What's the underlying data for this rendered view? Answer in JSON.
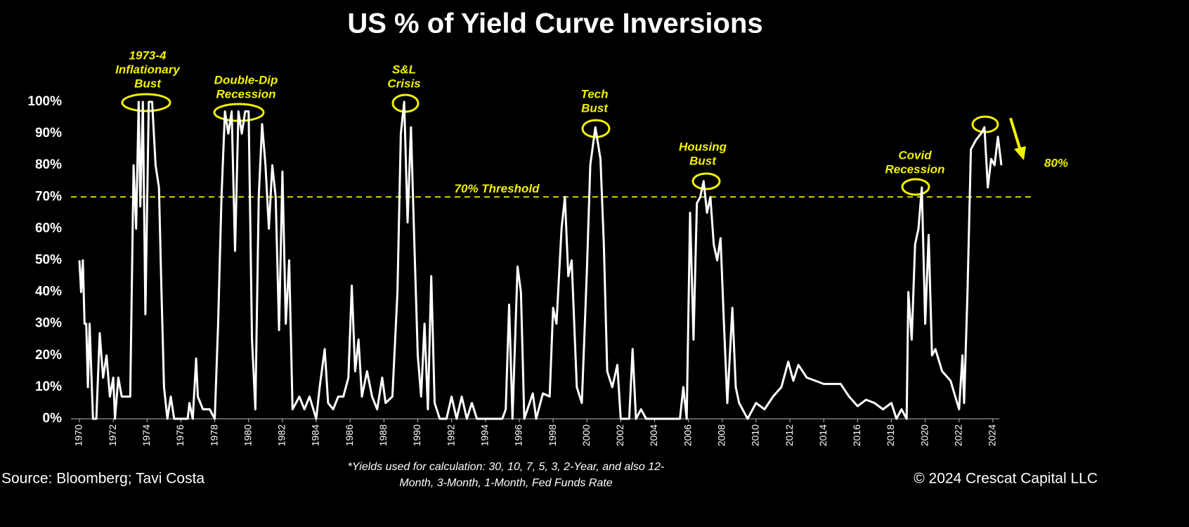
{
  "chart_data": {
    "type": "line",
    "title": "US % of Yield Curve Inversions",
    "source": "Source: Bloomberg; Tavi Costa",
    "footnote": [
      "*Yields used for calculation: 30, 10, 7, 5, 3, 2-Year, and also 12-",
      "Month, 3-Month, 1-Month, Fed Funds Rate"
    ],
    "copyright": "© 2024 Crescat Capital LLC",
    "annotations": [
      {
        "text": [
          "1973-4",
          "Inflationary",
          "Bust"
        ]
      },
      {
        "text": [
          "Double-Dip",
          "Recession"
        ]
      },
      {
        "text": [
          "S&L",
          "Crisis"
        ]
      },
      {
        "text": [
          "Tech",
          "Bust"
        ]
      },
      {
        "text": [
          "Housing",
          "Bust"
        ]
      },
      {
        "text": [
          "Covid",
          "Recession"
        ]
      },
      {
        "text": [
          "80%"
        ]
      }
    ],
    "threshold": {
      "value": 70,
      "label": "70% Threshold"
    },
    "xlim": [
      1969.5,
      2025
    ],
    "xticks": [
      1970,
      1972,
      1974,
      1976,
      1978,
      1980,
      1982,
      1984,
      1986,
      1988,
      1990,
      1992,
      1994,
      1996,
      1998,
      2000,
      2002,
      2004,
      2006,
      2008,
      2010,
      2012,
      2014,
      2016,
      2018,
      2020,
      2022,
      2024
    ],
    "ylim": [
      0,
      100
    ],
    "yticks": [
      {
        "value": 0,
        "label": "0%"
      },
      {
        "value": 10,
        "label": "10%"
      },
      {
        "value": 20,
        "label": "20%"
      },
      {
        "value": 30,
        "label": "30%"
      },
      {
        "value": 40,
        "label": "40%"
      },
      {
        "value": 50,
        "label": "50%"
      },
      {
        "value": 60,
        "label": "60%"
      },
      {
        "value": 70,
        "label": "70%"
      },
      {
        "value": 80,
        "label": "80%"
      },
      {
        "value": 90,
        "label": "90%"
      },
      {
        "value": 100,
        "label": "100%"
      }
    ],
    "color": "#ffffff",
    "x": [
      1970,
      1970.1,
      1970.2,
      1970.3,
      1970.4,
      1970.5,
      1970.6,
      1970.8,
      1971.0,
      1971.2,
      1971.4,
      1971.6,
      1971.8,
      1972.0,
      1972.1,
      1972.3,
      1972.5,
      1972.8,
      1973.0,
      1973.2,
      1973.35,
      1973.5,
      1973.6,
      1973.75,
      1973.9,
      1974.1,
      1974.3,
      1974.5,
      1974.7,
      1974.85,
      1975.0,
      1975.2,
      1975.4,
      1975.6,
      1976.0,
      1976.4,
      1976.5,
      1976.7,
      1976.9,
      1977.0,
      1977.3,
      1977.7,
      1978.0,
      1978.2,
      1978.4,
      1978.6,
      1978.8,
      1979.0,
      1979.2,
      1979.4,
      1979.6,
      1979.8,
      1980.0,
      1980.2,
      1980.4,
      1980.6,
      1980.8,
      1981.0,
      1981.2,
      1981.4,
      1981.6,
      1981.8,
      1982.0,
      1982.2,
      1982.4,
      1982.6,
      1983.0,
      1983.3,
      1983.6,
      1984.0,
      1984.2,
      1984.5,
      1984.7,
      1985.0,
      1985.3,
      1985.6,
      1985.9,
      1986.1,
      1986.3,
      1986.5,
      1986.7,
      1987.0,
      1987.3,
      1987.6,
      1987.9,
      1988.1,
      1988.5,
      1988.8,
      1989.0,
      1989.2,
      1989.4,
      1989.6,
      1989.8,
      1990.0,
      1990.2,
      1990.4,
      1990.6,
      1990.8,
      1991.0,
      1991.3,
      1991.7,
      1992.0,
      1992.3,
      1992.6,
      1992.9,
      1993.2,
      1993.5,
      1994.0,
      1995.0,
      1995.2,
      1995.4,
      1995.6,
      1995.9,
      1996.1,
      1996.3,
      1996.8,
      1997.0,
      1997.4,
      1997.8,
      1998.0,
      1998.2,
      1998.5,
      1998.7,
      1998.9,
      1999.1,
      1999.4,
      1999.7,
      2000.0,
      2000.2,
      2000.5,
      2000.8,
      2001.0,
      2001.2,
      2001.5,
      2001.8,
      2002.0,
      2002.5,
      2002.7,
      2002.9,
      2003.2,
      2003.5,
      2004.0,
      2005.5,
      2005.7,
      2005.9,
      2006.1,
      2006.3,
      2006.5,
      2006.7,
      2006.9,
      2007.1,
      2007.3,
      2007.5,
      2007.7,
      2007.9,
      2008.1,
      2008.3,
      2008.6,
      2008.8,
      2009.0,
      2009.5,
      2010.0,
      2010.5,
      2011.0,
      2011.5,
      2011.9,
      2012.2,
      2012.5,
      2013.0,
      2013.5,
      2014.0,
      2015.0,
      2015.5,
      2016.0,
      2016.5,
      2017.0,
      2017.5,
      2018.0,
      2018.3,
      2018.6,
      2018.9,
      2019.0,
      2019.2,
      2019.4,
      2019.6,
      2019.8,
      2020.0,
      2020.2,
      2020.4,
      2020.6,
      2021.0,
      2021.5,
      2022.0,
      2022.2,
      2022.3,
      2022.5,
      2022.7,
      2023.0,
      2023.3,
      2023.5,
      2023.7,
      2023.9,
      2024.1,
      2024.3,
      2024.5
    ],
    "values": [
      50,
      40,
      50,
      30,
      30,
      10,
      30,
      0,
      0,
      27,
      13,
      20,
      7,
      13,
      0,
      13,
      7,
      7,
      7,
      80,
      60,
      100,
      67,
      100,
      33,
      100,
      100,
      80,
      73,
      40,
      10,
      0,
      7,
      0,
      0,
      0,
      5,
      0,
      19,
      7,
      3,
      3,
      0,
      30,
      70,
      97,
      90,
      97,
      53,
      97,
      90,
      97,
      97,
      25,
      3,
      70,
      93,
      80,
      60,
      80,
      70,
      28,
      78,
      30,
      50,
      3,
      7,
      3,
      7,
      0,
      10,
      22,
      5,
      3,
      7,
      7,
      13,
      42,
      15,
      25,
      7,
      15,
      7,
      3,
      13,
      5,
      7,
      40,
      90,
      100,
      62,
      92,
      55,
      20,
      7,
      30,
      3,
      45,
      5,
      0,
      0,
      7,
      0,
      7,
      0,
      5,
      0,
      0,
      0,
      3,
      36,
      0,
      48,
      40,
      0,
      8,
      0,
      8,
      7,
      35,
      30,
      60,
      70,
      45,
      50,
      10,
      5,
      47,
      80,
      92,
      82,
      55,
      15,
      10,
      17,
      0,
      0,
      22,
      0,
      3,
      0,
      0,
      0,
      10,
      0,
      65,
      25,
      68,
      70,
      75,
      65,
      70,
      55,
      50,
      57,
      30,
      5,
      35,
      10,
      5,
      0,
      5,
      3,
      7,
      10,
      18,
      12,
      17,
      13,
      12,
      11,
      11,
      7,
      4,
      6,
      5,
      3,
      5,
      0,
      3,
      0,
      40,
      25,
      55,
      60,
      73,
      30,
      58,
      20,
      22,
      15,
      12,
      3,
      20,
      5,
      40,
      85,
      88,
      90,
      92,
      73,
      82,
      80,
      89,
      80
    ]
  }
}
